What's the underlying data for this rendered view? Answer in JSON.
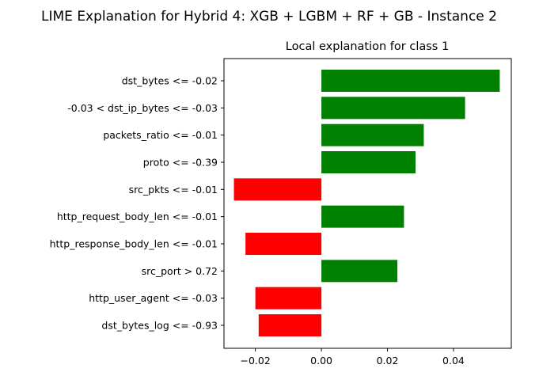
{
  "chart_data": {
    "type": "bar",
    "orientation": "horizontal",
    "suptitle": "LIME Explanation for Hybrid 4: XGB + LGBM + RF + GB - Instance 2",
    "title": "Local explanation for class 1",
    "xlabel": "",
    "ylabel": "",
    "categories": [
      "dst_bytes <= -0.02",
      "-0.03 < dst_ip_bytes <= -0.03",
      "packets_ratio <= -0.01",
      "proto <= -0.39",
      "src_pkts <= -0.01",
      "http_request_body_len <= -0.01",
      "http_response_body_len <= -0.01",
      "src_port > 0.72",
      "http_user_agent <= -0.03",
      "dst_bytes_log <= -0.93"
    ],
    "values": [
      0.054,
      0.0435,
      0.031,
      0.0285,
      -0.0265,
      0.025,
      -0.023,
      0.023,
      -0.02,
      -0.019
    ],
    "xlim": [
      -0.0295,
      0.0575
    ],
    "xticks": [
      -0.02,
      0.0,
      0.02,
      0.04
    ],
    "xtick_labels": [
      "−0.02",
      "0.00",
      "0.02",
      "0.04"
    ],
    "colors": {
      "positive": "#008000",
      "negative": "#ff0000"
    },
    "grid": false,
    "legend": "none"
  }
}
